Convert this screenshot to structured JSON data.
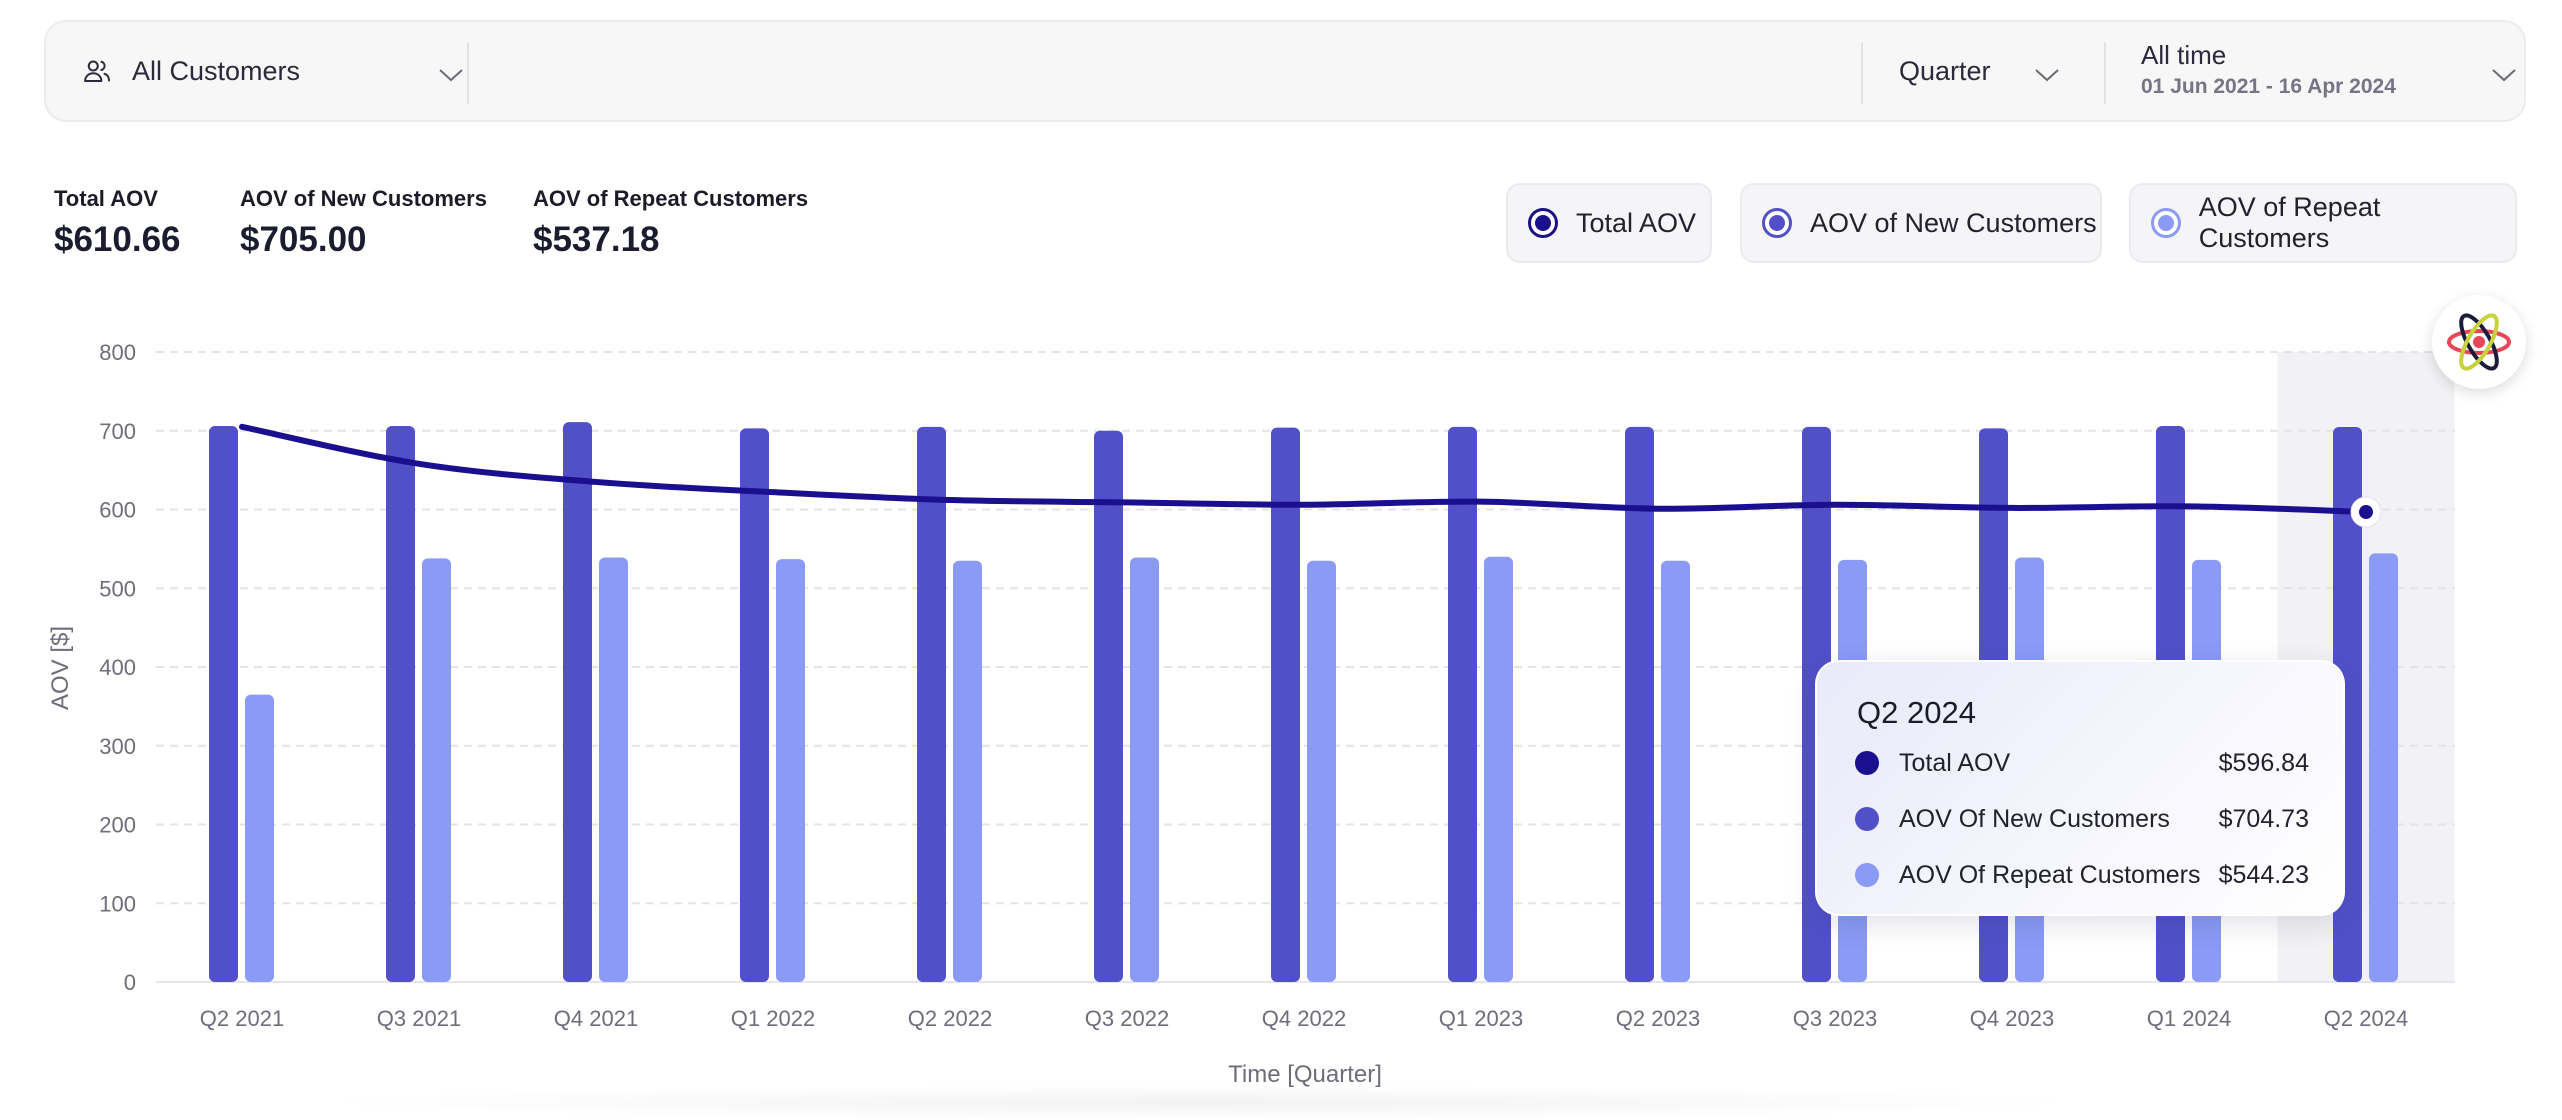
{
  "filters": {
    "segment": {
      "icon": "users-icon",
      "label": "All Customers"
    },
    "granularity": {
      "label": "Quarter"
    },
    "date_range": {
      "label": "All time",
      "range": "01 Jun 2021 - 16 Apr 2024"
    }
  },
  "summary": [
    {
      "label": "Total AOV",
      "value": "$610.66"
    },
    {
      "label": "AOV of New Customers",
      "value": "$705.00"
    },
    {
      "label": "AOV of Repeat Customers",
      "value": "$537.18"
    }
  ],
  "legend_toggles": [
    {
      "label": "Total AOV",
      "color": "#1a0f8f"
    },
    {
      "label": "AOV of New Customers",
      "color": "#5150c8"
    },
    {
      "label": "AOV of Repeat Customers",
      "color": "#8a9af5"
    }
  ],
  "assistant_button": {
    "icon": "atom-icon"
  },
  "tooltip": {
    "title": "Q2 2024",
    "rows": [
      {
        "name": "Total AOV",
        "value": "$596.84",
        "color": "#1a0f8f"
      },
      {
        "name": "AOV Of New Customers",
        "value": "$704.73",
        "color": "#5150c8"
      },
      {
        "name": "AOV Of Repeat Customers",
        "value": "$544.23",
        "color": "#8a9af5"
      }
    ]
  },
  "chart_data": {
    "type": "bar",
    "categories": [
      "Q2 2021",
      "Q3 2021",
      "Q4 2021",
      "Q1 2022",
      "Q2 2022",
      "Q3 2022",
      "Q4 2022",
      "Q1 2023",
      "Q2 2023",
      "Q3 2023",
      "Q4 2023",
      "Q1 2024",
      "Q2 2024"
    ],
    "series": [
      {
        "name": "AOV of New Customers",
        "type": "bar",
        "color": "#5150c8",
        "values": [
          706,
          706,
          711,
          703,
          705,
          700,
          704,
          705,
          705,
          705,
          703,
          706,
          704.73
        ]
      },
      {
        "name": "AOV of Repeat Customers",
        "type": "bar",
        "color": "#8a9af5",
        "values": [
          365,
          538,
          539,
          537,
          535,
          539,
          535,
          540,
          535,
          536,
          539,
          536,
          544.23
        ]
      },
      {
        "name": "Total AOV",
        "type": "line",
        "color": "#1a0f8f",
        "values": [
          705,
          658,
          635,
          622,
          612,
          609,
          606,
          610,
          601,
          606,
          602,
          604,
          596.84
        ]
      }
    ],
    "xlabel": "Time [Quarter]",
    "ylabel": "AOV [$]",
    "ylim": [
      0,
      800
    ],
    "yticks": [
      0,
      100,
      200,
      300,
      400,
      500,
      600,
      700,
      800
    ],
    "grid": true,
    "highlighted_category": "Q2 2024"
  }
}
